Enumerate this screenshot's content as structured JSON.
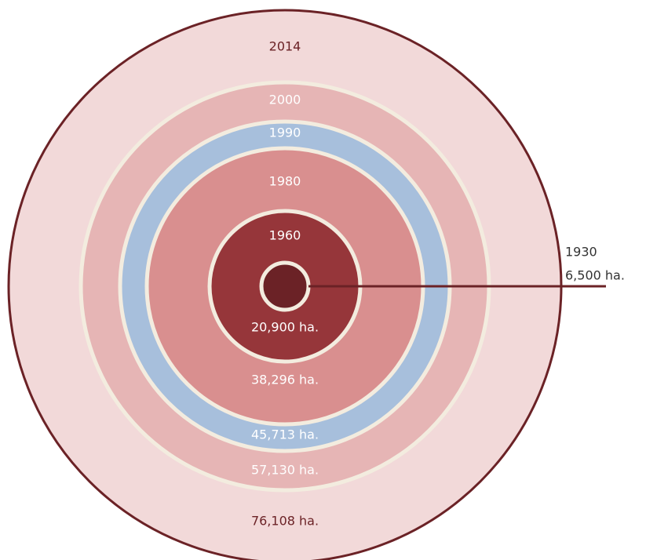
{
  "chart_data": {
    "type": "nested-circle",
    "categories": [
      "1930",
      "1960",
      "1980",
      "1990",
      "2000",
      "2014"
    ],
    "values": [
      6500,
      20900,
      38296,
      45713,
      57130,
      76108
    ],
    "value_labels": [
      "6,500 ha.",
      "20,900 ha.",
      "38,296 ha.",
      "45,713 ha.",
      "57,130 ha.",
      "76,108 ha."
    ],
    "colors": [
      "#6b2226",
      "#96363a",
      "#d98f8f",
      "#a7bfdc",
      "#e6b5b5",
      "#f2d9d9"
    ]
  }
}
